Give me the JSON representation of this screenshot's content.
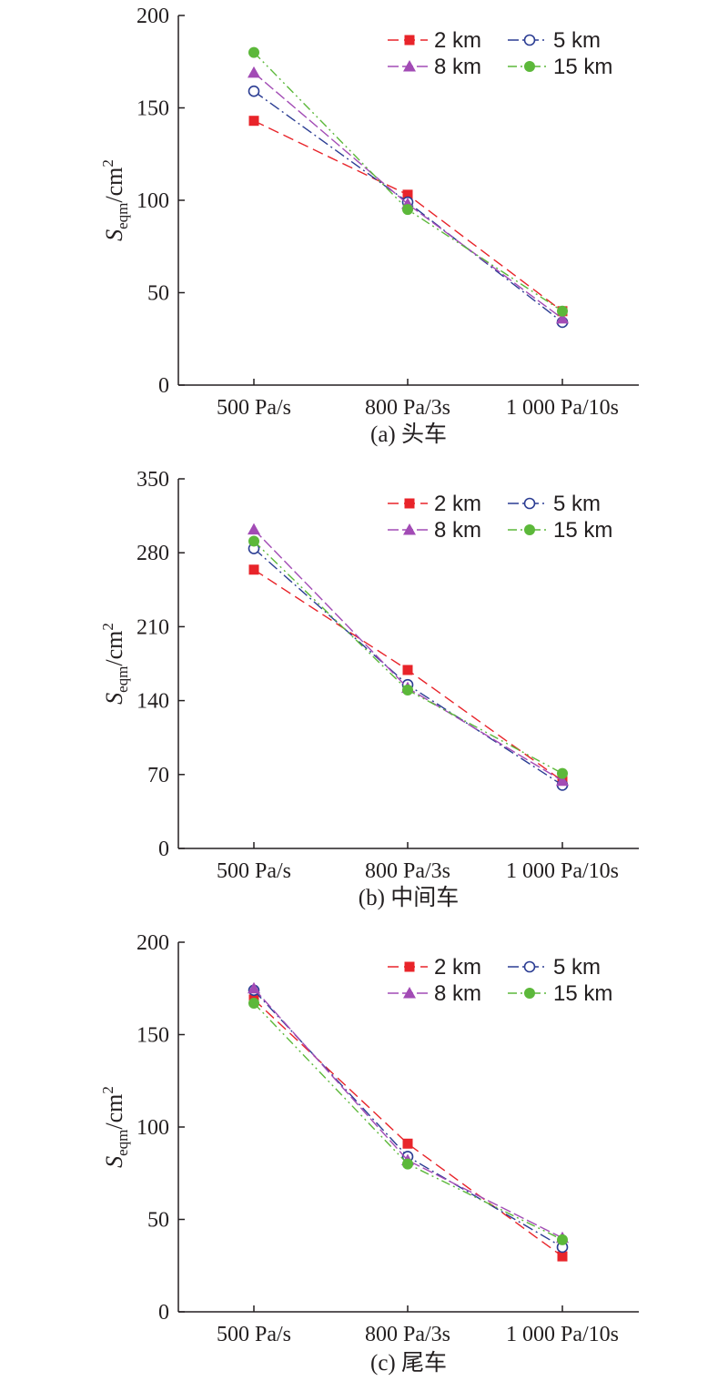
{
  "colors": {
    "2 km": "#e8242a",
    "5 km": "#2b3d93",
    "8 km": "#a24bb5",
    "15 km": "#5cb83a",
    "axis": "#231f20"
  },
  "markers": {
    "2 km": "square",
    "5 km": "circle-open",
    "8 km": "triangle",
    "15 km": "circle"
  },
  "chart_data": [
    {
      "type": "line",
      "caption": "(a) 头车",
      "ylabel": {
        "italic": "S",
        "sub": "eqm",
        "unit": "/cm",
        "sup": "2"
      },
      "categories": [
        "500 Pa/s",
        "800 Pa/3s",
        "1 000 Pa/10s"
      ],
      "ylim": [
        0,
        200
      ],
      "yticks": [
        "0",
        "50",
        "100",
        "150",
        "200"
      ],
      "legend": "top-right",
      "series": [
        {
          "name": "2 km",
          "values": [
            143,
            103,
            40
          ]
        },
        {
          "name": "5 km",
          "values": [
            159,
            99,
            34
          ]
        },
        {
          "name": "8 km",
          "values": [
            169,
            98,
            36
          ]
        },
        {
          "name": "15 km",
          "values": [
            180,
            95,
            40
          ]
        }
      ]
    },
    {
      "type": "line",
      "caption": "(b) 中间车",
      "ylabel": {
        "italic": "S",
        "sub": "eqm",
        "unit": "/cm",
        "sup": "2"
      },
      "categories": [
        "500 Pa/s",
        "800 Pa/3s",
        "1 000 Pa/10s"
      ],
      "ylim": [
        0,
        350
      ],
      "yticks": [
        "0",
        "70",
        "140",
        "210",
        "280",
        "350"
      ],
      "legend": "top-right",
      "series": [
        {
          "name": "2 km",
          "values": [
            264,
            169,
            64
          ]
        },
        {
          "name": "5 km",
          "values": [
            284,
            155,
            60
          ]
        },
        {
          "name": "8 km",
          "values": [
            302,
            152,
            64
          ]
        },
        {
          "name": "15 km",
          "values": [
            291,
            150,
            71
          ]
        }
      ]
    },
    {
      "type": "line",
      "caption": "(c) 尾车",
      "ylabel": {
        "italic": "S",
        "sub": "eqm",
        "unit": "/cm",
        "sup": "2"
      },
      "categories": [
        "500 Pa/s",
        "800 Pa/3s",
        "1 000 Pa/10s"
      ],
      "ylim": [
        0,
        200
      ],
      "yticks": [
        "0",
        "50",
        "100",
        "150",
        "200"
      ],
      "legend": "top-right",
      "series": [
        {
          "name": "2 km",
          "values": [
            169,
            91,
            30
          ]
        },
        {
          "name": "5 km",
          "values": [
            174,
            84,
            35
          ]
        },
        {
          "name": "8 km",
          "values": [
            175,
            82,
            40
          ]
        },
        {
          "name": "15 km",
          "values": [
            167,
            80,
            39
          ]
        }
      ]
    }
  ]
}
